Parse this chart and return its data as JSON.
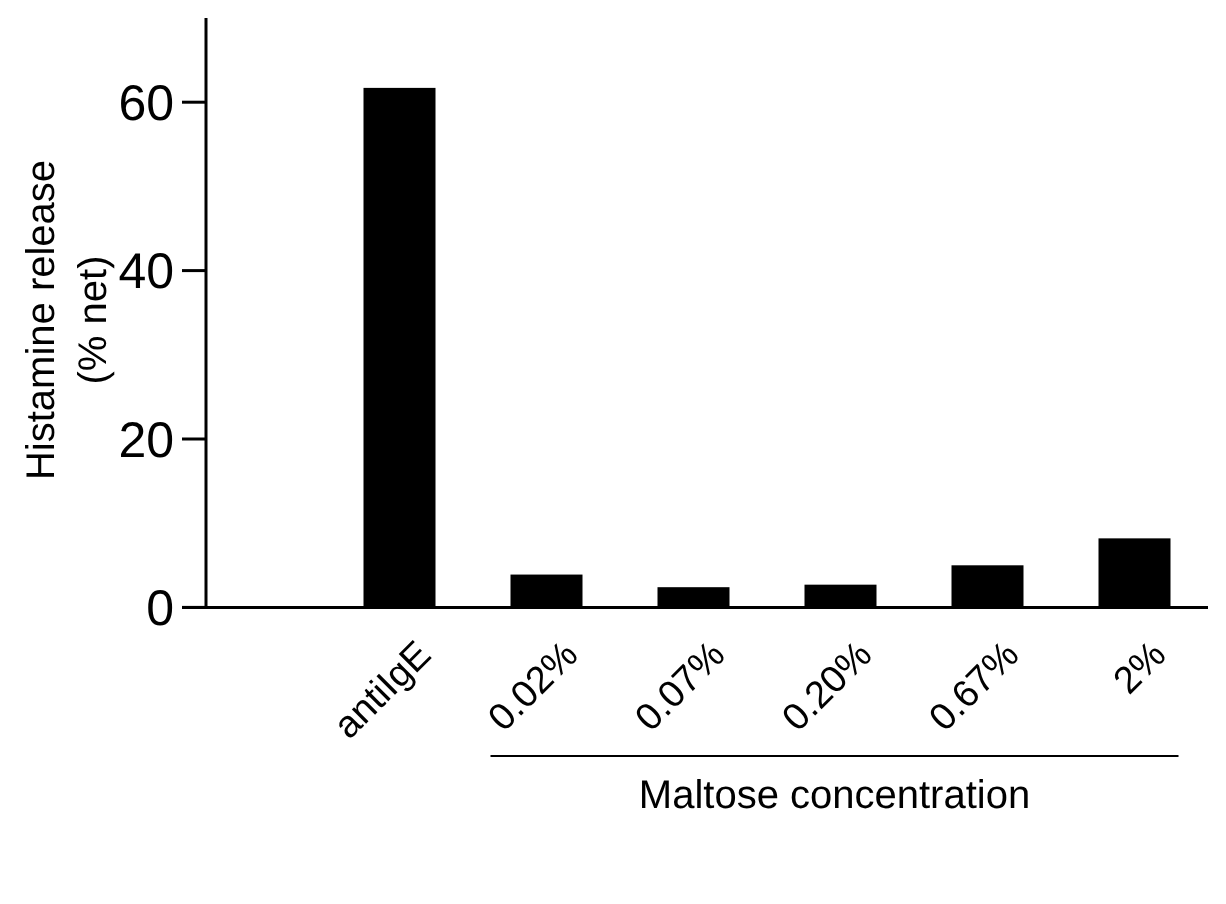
{
  "chart_data": {
    "type": "bar",
    "categories": [
      "antiIgE",
      "0.02%",
      "0.07%",
      "0.20%",
      "0.67%",
      "2%"
    ],
    "values": [
      61.7,
      3.9,
      2.4,
      2.7,
      5.0,
      8.2
    ],
    "color": "#000000",
    "ylim": [
      0,
      70
    ],
    "yticks": [
      0,
      20,
      40,
      60
    ],
    "ylabel": "Histamine release\n(% net)",
    "xlabel": "Maltose concentration",
    "grid": false
  }
}
